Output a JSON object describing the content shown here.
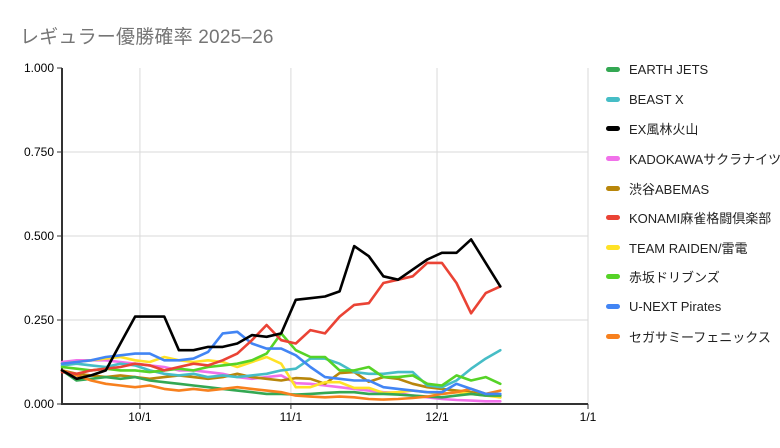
{
  "title": "レギュラー優勝確率 2025–26",
  "chart_data": {
    "type": "line",
    "title": "レギュラー優勝確率 2025–26",
    "xlabel": "",
    "ylabel": "",
    "ylim": [
      0,
      1
    ],
    "grid": true,
    "legend_position": "right",
    "y_ticks": [
      0,
      0.25,
      0.5,
      0.75,
      1
    ],
    "y_tick_labels": [
      "0.000",
      "0.250",
      "0.500",
      "0.750",
      "1.000"
    ],
    "x_axis": {
      "start_date": "9/15",
      "end_date": "1/1",
      "day_min": 0,
      "day_max": 108
    },
    "x_tick_labels": [
      "10/1",
      "11/1",
      "12/1",
      "1/1"
    ],
    "x_tick_days": [
      16,
      47,
      77,
      108
    ],
    "x_days": [
      0,
      3,
      6,
      9,
      12,
      15,
      18,
      21,
      24,
      27,
      30,
      33,
      36,
      39,
      42,
      45,
      48,
      51,
      54,
      57,
      60,
      63,
      66,
      69,
      72,
      75,
      78,
      81,
      84,
      87,
      90
    ],
    "x_dates": [
      "9/15",
      "9/18",
      "9/21",
      "9/24",
      "9/27",
      "9/30",
      "10/3",
      "10/6",
      "10/9",
      "10/12",
      "10/15",
      "10/18",
      "10/21",
      "10/24",
      "10/27",
      "10/30",
      "11/2",
      "11/5",
      "11/8",
      "11/11",
      "11/14",
      "11/17",
      "11/20",
      "11/23",
      "11/26",
      "11/29",
      "12/2",
      "12/5",
      "12/8",
      "12/11",
      "12/14"
    ],
    "series": [
      {
        "name": "EARTH JETS",
        "color": "#34A853",
        "values": [
          0.1,
          0.07,
          0.075,
          0.08,
          0.075,
          0.08,
          0.07,
          0.065,
          0.06,
          0.055,
          0.05,
          0.045,
          0.04,
          0.035,
          0.03,
          0.03,
          0.028,
          0.03,
          0.033,
          0.035,
          0.035,
          0.03,
          0.03,
          0.028,
          0.025,
          0.022,
          0.02,
          0.025,
          0.03,
          0.025,
          0.025
        ]
      },
      {
        "name": "BEAST X",
        "color": "#46BDC6",
        "values": [
          0.115,
          0.12,
          0.115,
          0.11,
          0.12,
          0.115,
          0.1,
          0.09,
          0.085,
          0.09,
          0.08,
          0.085,
          0.08,
          0.085,
          0.09,
          0.1,
          0.105,
          0.135,
          0.135,
          0.12,
          0.095,
          0.09,
          0.09,
          0.095,
          0.095,
          0.055,
          0.05,
          0.07,
          0.105,
          0.135,
          0.16
        ]
      },
      {
        "name": "EX風林火山",
        "color": "#000000",
        "values": [
          0.1,
          0.075,
          0.085,
          0.1,
          0.18,
          0.26,
          0.26,
          0.26,
          0.16,
          0.16,
          0.17,
          0.17,
          0.18,
          0.205,
          0.2,
          0.21,
          0.31,
          0.315,
          0.32,
          0.335,
          0.47,
          0.44,
          0.38,
          0.37,
          0.4,
          0.43,
          0.45,
          0.45,
          0.49,
          0.42,
          0.35
        ]
      },
      {
        "name": "KADOKAWAサクラナイツ",
        "color": "#F171EA",
        "values": [
          0.125,
          0.13,
          0.13,
          0.13,
          0.125,
          0.12,
          0.115,
          0.11,
          0.1,
          0.1,
          0.095,
          0.09,
          0.08,
          0.075,
          0.08,
          0.085,
          0.062,
          0.06,
          0.055,
          0.05,
          0.045,
          0.04,
          0.035,
          0.033,
          0.025,
          0.02,
          0.015,
          0.012,
          0.01,
          0.008,
          0.008
        ]
      },
      {
        "name": "渋谷ABEMAS",
        "color": "#B8860B",
        "values": [
          0.1,
          0.09,
          0.085,
          0.08,
          0.085,
          0.08,
          0.075,
          0.08,
          0.085,
          0.08,
          0.075,
          0.08,
          0.09,
          0.08,
          0.075,
          0.07,
          0.077,
          0.075,
          0.06,
          0.092,
          0.095,
          0.066,
          0.08,
          0.075,
          0.06,
          0.05,
          0.045,
          0.04,
          0.035,
          0.03,
          0.02
        ]
      },
      {
        "name": "KONAMI麻雀格闘倶楽部",
        "color": "#EA4335",
        "values": [
          0.095,
          0.09,
          0.1,
          0.105,
          0.11,
          0.12,
          0.115,
          0.1,
          0.11,
          0.12,
          0.115,
          0.13,
          0.15,
          0.19,
          0.235,
          0.19,
          0.18,
          0.22,
          0.21,
          0.26,
          0.295,
          0.3,
          0.36,
          0.37,
          0.38,
          0.42,
          0.42,
          0.36,
          0.27,
          0.33,
          0.35
        ]
      },
      {
        "name": "TEAM RAIDEN/雷電",
        "color": "#FFE226",
        "values": [
          0.12,
          0.125,
          0.13,
          0.135,
          0.14,
          0.13,
          0.125,
          0.14,
          0.13,
          0.125,
          0.13,
          0.125,
          0.11,
          0.125,
          0.14,
          0.12,
          0.05,
          0.05,
          0.065,
          0.065,
          0.048,
          0.048,
          0.033,
          0.035,
          0.04,
          0.035,
          0.03,
          0.035,
          0.03,
          0.025,
          0.02
        ]
      },
      {
        "name": "赤坂ドリブンズ",
        "color": "#56D327",
        "values": [
          0.11,
          0.105,
          0.1,
          0.105,
          0.1,
          0.1,
          0.095,
          0.1,
          0.105,
          0.1,
          0.11,
          0.115,
          0.12,
          0.13,
          0.15,
          0.21,
          0.16,
          0.14,
          0.14,
          0.1,
          0.1,
          0.11,
          0.08,
          0.08,
          0.085,
          0.06,
          0.055,
          0.085,
          0.07,
          0.08,
          0.06
        ]
      },
      {
        "name": "U-NEXT Pirates",
        "color": "#4285F4",
        "values": [
          0.12,
          0.125,
          0.13,
          0.14,
          0.145,
          0.15,
          0.15,
          0.13,
          0.13,
          0.135,
          0.155,
          0.21,
          0.215,
          0.18,
          0.165,
          0.165,
          0.145,
          0.11,
          0.08,
          0.075,
          0.07,
          0.07,
          0.05,
          0.045,
          0.04,
          0.035,
          0.035,
          0.06,
          0.045,
          0.03,
          0.03
        ]
      },
      {
        "name": "セガサミーフェニックス",
        "color": "#F7801E",
        "values": [
          0.1,
          0.085,
          0.07,
          0.06,
          0.055,
          0.05,
          0.055,
          0.045,
          0.04,
          0.045,
          0.04,
          0.045,
          0.05,
          0.045,
          0.04,
          0.035,
          0.025,
          0.022,
          0.02,
          0.022,
          0.02,
          0.015,
          0.013,
          0.015,
          0.018,
          0.022,
          0.03,
          0.035,
          0.045,
          0.03,
          0.04
        ]
      }
    ]
  },
  "colors": {
    "grid": "#dadada",
    "axis": "#333333",
    "title": "#757575",
    "tick_text": "#000000"
  }
}
